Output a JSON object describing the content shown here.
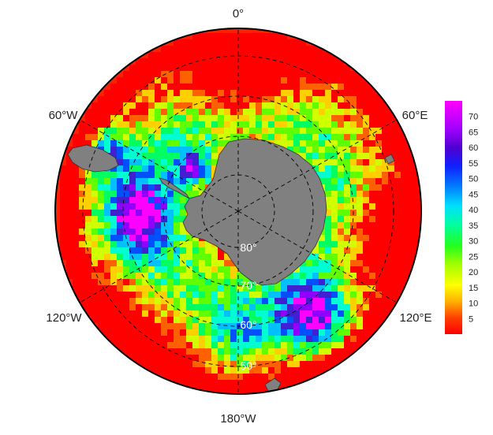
{
  "map": {
    "projection": "south-polar-stereographic",
    "longitude_labels": [
      "0°",
      "60°E",
      "120°E",
      "180°W",
      "120°W",
      "60°W"
    ],
    "latitude_labels": [
      "80°",
      "70°",
      "60°",
      "50°"
    ],
    "land_color": "#808080",
    "graticule": "dashed black"
  },
  "colorbar": {
    "ticks": [
      "5",
      "10",
      "15",
      "20",
      "25",
      "30",
      "35",
      "40",
      "45",
      "50",
      "55",
      "60",
      "65",
      "70"
    ],
    "range": [
      0,
      75
    ],
    "colormap": [
      "#ff0000",
      "#ff6000",
      "#ffd000",
      "#d0ff00",
      "#60ff00",
      "#00ff60",
      "#00ffd0",
      "#00c0ff",
      "#0050ff",
      "#4020d0",
      "#9000ff",
      "#ff00ff"
    ]
  }
}
